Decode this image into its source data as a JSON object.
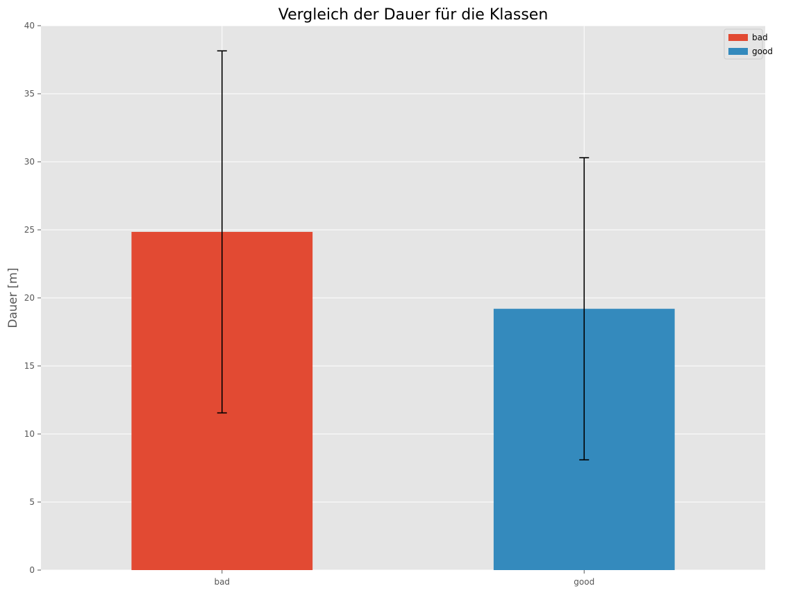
{
  "chart_data": {
    "type": "bar",
    "title": "Vergleich der Dauer für die Klassen",
    "xlabel": "",
    "ylabel": "Dauer [m]",
    "categories": [
      "bad",
      "good"
    ],
    "values": [
      24.85,
      19.2
    ],
    "error_low": [
      11.55,
      8.1
    ],
    "error_high": [
      38.15,
      30.3
    ],
    "colors": [
      "#e24a33",
      "#348abd"
    ],
    "ylim": [
      0,
      40
    ],
    "yticks": [
      0,
      5,
      10,
      15,
      20,
      25,
      30,
      35,
      40
    ],
    "grid": true,
    "legend_position": "top-right",
    "legend": [
      {
        "label": "bad",
        "color": "#e24a33"
      },
      {
        "label": "good",
        "color": "#348abd"
      }
    ]
  }
}
